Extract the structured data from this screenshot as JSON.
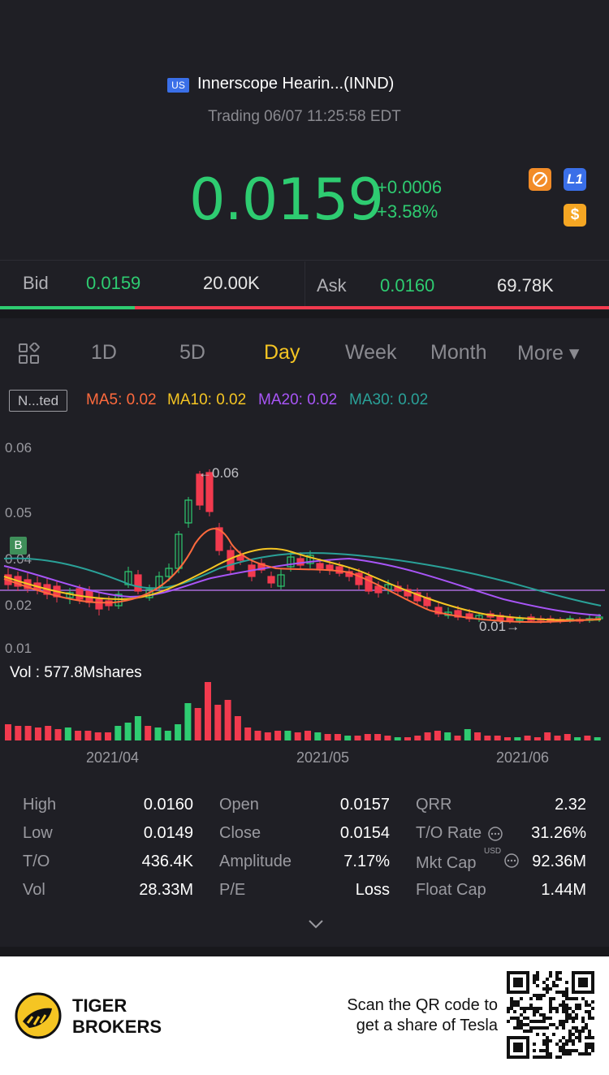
{
  "header": {
    "market_badge": "US",
    "title": "Innerscope Hearin...(INND)",
    "status": "Trading 06/07 11:25:58 EDT",
    "price": "0.0159",
    "change": "+0.0006",
    "change_pct": "+3.58%",
    "icons": [
      "no-entry-icon",
      "level1-icon",
      "dollar-icon"
    ],
    "level_badge": "L1",
    "dollar_badge": "$"
  },
  "quote": {
    "bid_label": "Bid",
    "bid_price": "0.0159",
    "bid_size": "20.00K",
    "ask_label": "Ask",
    "ask_price": "0.0160",
    "ask_size": "69.78K",
    "bid_fraction": 0.22
  },
  "tabs": {
    "items": [
      "1D",
      "5D",
      "Day",
      "Week",
      "Month",
      "More ▾"
    ],
    "active": "Day"
  },
  "indicators": {
    "mode": "N...ted",
    "ma5": "MA5: 0.02",
    "ma10": "MA10: 0.02",
    "ma20": "MA20: 0.02",
    "ma30": "MA30: 0.02",
    "colors": {
      "ma5": "#ff6a3d",
      "ma10": "#f5c523",
      "ma20": "#a855f7",
      "ma30": "#2aa198"
    }
  },
  "chart": {
    "y_ticks": [
      "0.06",
      "0.05",
      "0.04",
      "0.02",
      "0.01"
    ],
    "high_label": "←0.06",
    "low_label": "0.01→",
    "buy_marker": "B",
    "vol_label": "Vol  : 577.8Mshares",
    "x_ticks": [
      "2021/04",
      "2021/05",
      "2021/06"
    ]
  },
  "stats": {
    "high_label": "High",
    "high": "0.0160",
    "low_label": "Low",
    "low": "0.0149",
    "to_label": "T/O",
    "to": "436.4K",
    "vol_label": "Vol",
    "vol": "28.33M",
    "open_label": "Open",
    "open": "0.0157",
    "close_label": "Close",
    "close": "0.0154",
    "amp_label": "Amplitude",
    "amp": "7.17%",
    "pe_label": "P/E",
    "pe": "Loss",
    "qrr_label": "QRR",
    "qrr": "2.32",
    "torate_label": "T/O Rate",
    "torate": "31.26%",
    "mktcap_label": "Mkt Cap",
    "mktcap_unit": "USD",
    "mktcap": "92.36M",
    "floatcap_label": "Float Cap",
    "floatcap": "1.44M"
  },
  "footer": {
    "brand_line1": "TIGER",
    "brand_line2": "BROKERS",
    "promo_line1": "Scan the QR code to",
    "promo_line2": "get a share of Tesla"
  }
}
